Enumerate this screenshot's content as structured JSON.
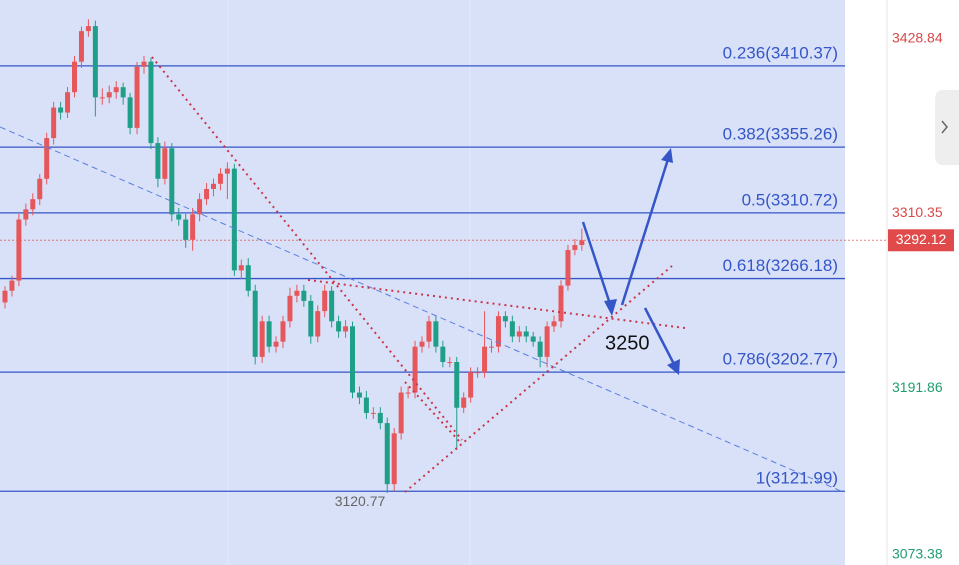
{
  "chart_data": {
    "type": "candlestick",
    "up_color": "#e6575b",
    "down_color": "#1f9e88",
    "ylim": [
      3072,
      3455
    ],
    "candles": [
      [
        3250,
        3261,
        3246,
        3257.9
      ],
      [
        3257.9,
        3268,
        3254,
        3264.8
      ],
      [
        3264.8,
        3310,
        3261,
        3306.2
      ],
      [
        3306.2,
        3317,
        3302,
        3313.1
      ],
      [
        3313.1,
        3324,
        3309,
        3320
      ],
      [
        3320,
        3337,
        3316,
        3333.8
      ],
      [
        3333.8,
        3365,
        3330,
        3361.4
      ],
      [
        3361.4,
        3386,
        3357,
        3382.1
      ],
      [
        3382.1,
        3386,
        3374,
        3378.7
      ],
      [
        3378.7,
        3396,
        3375,
        3392.5
      ],
      [
        3392.5,
        3417,
        3389,
        3413.2
      ],
      [
        3413.2,
        3437,
        3409,
        3433.9
      ],
      [
        3433.9,
        3442,
        3430,
        3437.3
      ],
      [
        3437.3,
        3441,
        3376,
        3389
      ],
      [
        3389,
        3395,
        3384,
        3389
      ],
      [
        3389,
        3397,
        3385,
        3392.5
      ],
      [
        3392.5,
        3400,
        3388,
        3395.9
      ],
      [
        3395.9,
        3399,
        3384,
        3389
      ],
      [
        3389,
        3392,
        3364,
        3368.3
      ],
      [
        3368.3,
        3413,
        3364,
        3409.7
      ],
      [
        3409.7,
        3417,
        3405,
        3413.2
      ],
      [
        3413.2,
        3416,
        3354,
        3358
      ],
      [
        3358,
        3362,
        3328,
        3333.8
      ],
      [
        3333.8,
        3359,
        3330,
        3354.5
      ],
      [
        3354.5,
        3358,
        3305,
        3309.7
      ],
      [
        3309.7,
        3314,
        3302,
        3306.2
      ],
      [
        3306.2,
        3310,
        3287,
        3292.4
      ],
      [
        3292.4,
        3314,
        3285,
        3309.7
      ],
      [
        3309.7,
        3324,
        3305,
        3320
      ],
      [
        3320,
        3331,
        3316,
        3326.9
      ],
      [
        3326.9,
        3334,
        3322,
        3330.4
      ],
      [
        3330.4,
        3341,
        3326,
        3337.3
      ],
      [
        3337.3,
        3345,
        3320,
        3340.7
      ],
      [
        3340.7,
        3344,
        3268,
        3271.7
      ],
      [
        3271.7,
        3279,
        3266,
        3275.2
      ],
      [
        3275.2,
        3280,
        3254,
        3257.9
      ],
      [
        3257.9,
        3262,
        3208,
        3213.1
      ],
      [
        3213.1,
        3241,
        3209,
        3237.2
      ],
      [
        3237.2,
        3241,
        3216,
        3220
      ],
      [
        3220,
        3227,
        3216,
        3223.4
      ],
      [
        3223.4,
        3241,
        3219,
        3237.2
      ],
      [
        3237.2,
        3260,
        3233,
        3254.5
      ],
      [
        3254.5,
        3262,
        3250,
        3257.9
      ],
      [
        3257.9,
        3262,
        3247,
        3251
      ],
      [
        3251,
        3255,
        3222,
        3226.9
      ],
      [
        3226.9,
        3248,
        3223,
        3244.1
      ],
      [
        3244.1,
        3262,
        3240,
        3257.9
      ],
      [
        3257.9,
        3261,
        3233,
        3237.2
      ],
      [
        3237.2,
        3241,
        3226,
        3230.3
      ],
      [
        3230.3,
        3238,
        3226,
        3233.8
      ],
      [
        3233.8,
        3237,
        3185,
        3188.9
      ],
      [
        3188.9,
        3193,
        3181,
        3185.5
      ],
      [
        3185.5,
        3190,
        3171,
        3175.1
      ],
      [
        3175.1,
        3179,
        3171,
        3175.1
      ],
      [
        3175.1,
        3179,
        3164,
        3168.2
      ],
      [
        3168.2,
        3172,
        3120.77,
        3126.8
      ],
      [
        3126.8,
        3165,
        3122,
        3161.3
      ],
      [
        3161.3,
        3193,
        3157,
        3188.9
      ],
      [
        3188.9,
        3193,
        3185,
        3188.9
      ],
      [
        3188.9,
        3224,
        3185,
        3220
      ],
      [
        3220,
        3227,
        3216,
        3223.4
      ],
      [
        3223.4,
        3241,
        3219,
        3237.2
      ],
      [
        3237.2,
        3241,
        3216,
        3220
      ],
      [
        3220,
        3224,
        3206,
        3209.6
      ],
      [
        3209.6,
        3213,
        3206,
        3209.6
      ],
      [
        3209.6,
        3213,
        3150,
        3178.6
      ],
      [
        3178.6,
        3189,
        3175,
        3185.5
      ],
      [
        3185.5,
        3206,
        3182,
        3202.7
      ],
      [
        3202.7,
        3206,
        3199,
        3202.7
      ],
      [
        3202.7,
        3244,
        3199,
        3220
      ],
      [
        3220,
        3224,
        3216,
        3220
      ],
      [
        3220,
        3244,
        3216,
        3240.7
      ],
      [
        3240.7,
        3244,
        3233,
        3237.2
      ],
      [
        3237.2,
        3241,
        3223,
        3226.9
      ],
      [
        3226.9,
        3234,
        3223,
        3230.3
      ],
      [
        3230.3,
        3234,
        3223,
        3226.9
      ],
      [
        3226.9,
        3230,
        3220,
        3223.4
      ],
      [
        3223.4,
        3227,
        3206,
        3213.1
      ],
      [
        3213.1,
        3237,
        3206,
        3233.8
      ],
      [
        3233.8,
        3241,
        3230,
        3237.2
      ],
      [
        3237.2,
        3265,
        3233,
        3261.4
      ],
      [
        3261.4,
        3289,
        3258,
        3285.5
      ],
      [
        3285.5,
        3293,
        3282,
        3288.9
      ],
      [
        3288.9,
        3300,
        3285,
        3292.12
      ]
    ],
    "fib_levels": [
      {
        "value": 3410.37,
        "label": "0.236(3410.37)"
      },
      {
        "value": 3355.26,
        "label": "0.382(3355.26)"
      },
      {
        "value": 3310.72,
        "label": "0.5(3310.72)"
      },
      {
        "value": 3266.18,
        "label": "0.618(3266.18)"
      },
      {
        "value": 3202.77,
        "label": "0.786(3202.77)"
      },
      {
        "value": 3121.99,
        "label": "1(3121.99)"
      }
    ],
    "fib_color": "#3556c8",
    "price_labels": [
      {
        "value": 3428.84,
        "color": "#d84848"
      },
      {
        "value": 3310.35,
        "color": "#d84848"
      },
      {
        "value": 3191.86,
        "color": "#1f9e70"
      },
      {
        "value": 3073.38,
        "color": "#1f9e70"
      }
    ],
    "current_price": {
      "value": 3292.12,
      "color": "#e04a4a"
    },
    "low_label": 3120.77,
    "annotation": "3250"
  }
}
